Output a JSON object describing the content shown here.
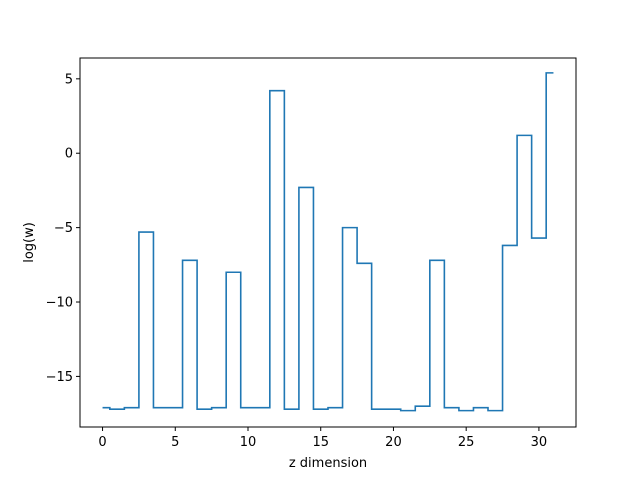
{
  "chart_data": {
    "type": "line",
    "drawstyle": "steps-mid",
    "title": "",
    "xlabel": "z dimension",
    "ylabel": "log(w)",
    "xlim": [
      -1.55,
      32.55
    ],
    "ylim": [
      -18.4,
      6.4
    ],
    "xticks": [
      0,
      5,
      10,
      15,
      20,
      25,
      30
    ],
    "yticks": [
      -15,
      -10,
      -5,
      0,
      5
    ],
    "ytick_labels": [
      "−15",
      "−10",
      "−5",
      "0",
      "5"
    ],
    "grid": false,
    "color": "#1f77b4",
    "series": [
      {
        "x": [
          0,
          1,
          2,
          3,
          4,
          5,
          6,
          7,
          8,
          9,
          10,
          11,
          12,
          13,
          14,
          15,
          16,
          17,
          18,
          19,
          20,
          21,
          22,
          23,
          24,
          25,
          26,
          27,
          28,
          29,
          30,
          31
        ],
        "values": [
          -17.1,
          -17.2,
          -17.1,
          -5.3,
          -17.1,
          -17.1,
          -7.2,
          -17.2,
          -17.1,
          -8.0,
          -17.1,
          -17.1,
          4.2,
          -17.2,
          -2.3,
          -17.2,
          -17.1,
          -5.0,
          -7.4,
          -17.2,
          -17.2,
          -17.3,
          -17.0,
          -7.2,
          -17.1,
          -17.3,
          -17.1,
          -17.3,
          -6.2,
          1.2,
          -5.7,
          5.4
        ]
      }
    ]
  }
}
